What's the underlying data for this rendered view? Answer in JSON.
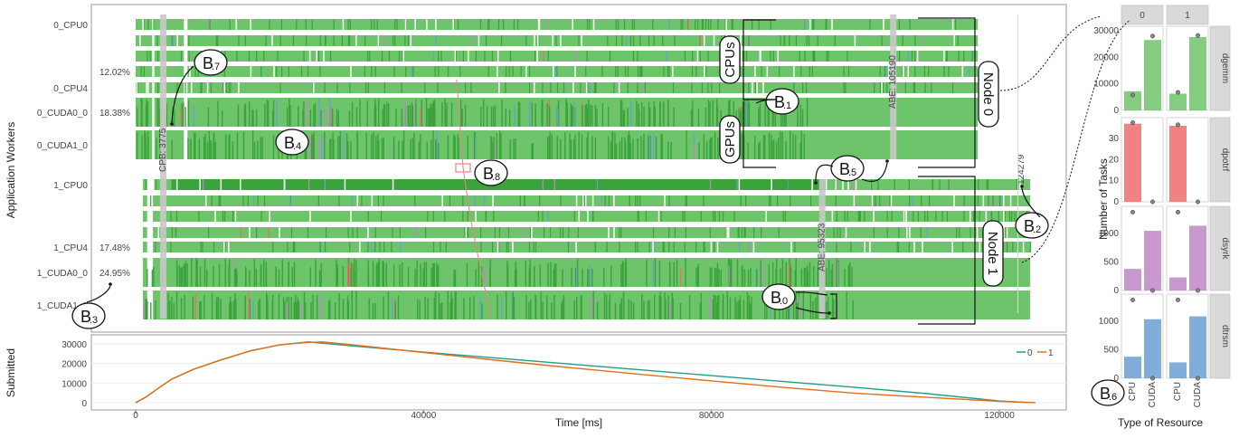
{
  "gantt": {
    "ylabel": "Application Workers",
    "rows": [
      {
        "label": "0_CPU0",
        "node": 0,
        "kind": "cpu",
        "show_label": true
      },
      {
        "label": "",
        "node": 0,
        "kind": "cpu",
        "show_label": false
      },
      {
        "label": "",
        "node": 0,
        "kind": "cpu",
        "show_label": false
      },
      {
        "label": "",
        "node": 0,
        "kind": "cpu",
        "show_label": false
      },
      {
        "label": "0_CPU4",
        "node": 0,
        "kind": "cpu",
        "show_label": true
      },
      {
        "label": "0_CUDA0_0",
        "node": 0,
        "kind": "gpu",
        "show_label": true
      },
      {
        "label": "0_CUDA1_0",
        "node": 0,
        "kind": "gpu",
        "show_label": true
      },
      {
        "label": "1_CPU0",
        "node": 1,
        "kind": "cpu",
        "show_label": true
      },
      {
        "label": "",
        "node": 1,
        "kind": "cpu",
        "show_label": false
      },
      {
        "label": "",
        "node": 1,
        "kind": "cpu",
        "show_label": false
      },
      {
        "label": "",
        "node": 1,
        "kind": "cpu",
        "show_label": false
      },
      {
        "label": "1_CPU4",
        "node": 1,
        "kind": "cpu",
        "show_label": true
      },
      {
        "label": "1_CUDA0_0",
        "node": 1,
        "kind": "gpu",
        "show_label": true
      },
      {
        "label": "1_CUDA1_0",
        "node": 1,
        "kind": "gpu",
        "show_label": true
      }
    ],
    "idle_percentages": [
      {
        "text": "12.02%",
        "row": 3
      },
      {
        "text": "18.38%",
        "row": 5
      },
      {
        "text": "17.48%",
        "row": 11
      },
      {
        "text": "24.95%",
        "row": 12
      }
    ],
    "vertical_labels": [
      {
        "text": "CPB: 3775",
        "time": 3775
      },
      {
        "text": "ABE: 105190",
        "time": 105190
      },
      {
        "text": "ABE: 95323",
        "time": 95323
      },
      {
        "text": "124279",
        "time": 124279
      }
    ],
    "group_labels": [
      "CPUs",
      "GPUs",
      "Node 0",
      "Node 1"
    ],
    "annotations": [
      "B",
      ".7",
      ".1",
      ".4",
      ".8",
      ".5",
      ".2",
      ".3",
      ".0",
      ".6"
    ],
    "colors": {
      "dgemm": "#6ec46a",
      "dgemm_dark": "#3aa33a",
      "dpotrf": "#f06b6b",
      "dsyrk": "#bf86c9",
      "dtrsm": "#6a9fd4",
      "idle_bar": "#c8c8c8",
      "path": "#f08080"
    }
  },
  "submitted": {
    "ylabel": "Submitted",
    "xlabel": "Time [ms]",
    "legend": [
      {
        "name": "0",
        "color": "#1f9e89"
      },
      {
        "name": "1",
        "color": "#e0701a"
      }
    ]
  },
  "facets": {
    "ylabel": "Number of Tasks",
    "xlabel": "Type of Resource",
    "columns": [
      "0",
      "1"
    ],
    "rows": [
      "dgemm",
      "dpotrf",
      "dsyrk",
      "dtrsm"
    ],
    "categories": [
      "CPU",
      "CUDA"
    ]
  },
  "chart_data": [
    {
      "type": "line",
      "title": "",
      "xlabel": "Time [ms]",
      "ylabel": "Submitted",
      "xlim": [
        -5000,
        128000
      ],
      "ylim": [
        0,
        32000
      ],
      "xticks": [
        0,
        40000,
        80000,
        120000
      ],
      "yticks": [
        0,
        10000,
        20000,
        30000
      ],
      "legend_position": "top-right",
      "series": [
        {
          "name": "0",
          "x": [
            0,
            1500,
            3000,
            5000,
            8000,
            12000,
            16000,
            20000,
            24000,
            30000,
            40000,
            50000,
            60000,
            70000,
            80000,
            90000,
            100000,
            110000,
            120000,
            124000
          ],
          "y": [
            0,
            3000,
            7000,
            12000,
            17000,
            22000,
            26500,
            29500,
            31000,
            29000,
            25800,
            22800,
            19800,
            16800,
            13800,
            10800,
            7800,
            4600,
            900,
            100
          ]
        },
        {
          "name": "1",
          "x": [
            0,
            1500,
            3000,
            5000,
            8000,
            12000,
            16000,
            20000,
            24000,
            26000,
            30000,
            40000,
            50000,
            60000,
            70000,
            80000,
            90000,
            100000,
            110000,
            120000,
            125000
          ],
          "y": [
            0,
            3000,
            7000,
            12000,
            17000,
            22000,
            26500,
            29500,
            30800,
            31000,
            29600,
            25600,
            21700,
            18000,
            14500,
            11100,
            7800,
            4800,
            2700,
            700,
            50
          ]
        }
      ]
    },
    {
      "type": "bar",
      "title": "",
      "xlabel": "Type of Resource",
      "ylabel": "Number of Tasks",
      "categories": [
        "CPU",
        "CUDA"
      ],
      "panels": [
        {
          "task": "dgemm",
          "node": "0",
          "values": [
            7200,
            26500
          ],
          "points": [
            5800,
            28000
          ],
          "ylim": [
            0,
            31000
          ],
          "yticks": [
            0,
            10000,
            20000,
            30000
          ]
        },
        {
          "task": "dgemm",
          "node": "1",
          "values": [
            6300,
            27600
          ],
          "points": [
            6800,
            28200
          ],
          "ylim": [
            0,
            31000
          ],
          "yticks": [
            0,
            10000,
            20000,
            30000
          ]
        },
        {
          "task": "dpotrf",
          "node": "0",
          "values": [
            37,
            0
          ],
          "points": [
            37.5,
            0
          ],
          "ylim": [
            0,
            39
          ],
          "yticks": [
            0,
            10,
            20,
            30
          ]
        },
        {
          "task": "dpotrf",
          "node": "1",
          "values": [
            36,
            0
          ],
          "points": [
            36.5,
            0
          ],
          "ylim": [
            0,
            39
          ],
          "yticks": [
            0,
            10,
            20,
            30
          ]
        },
        {
          "task": "dsyrk",
          "node": "0",
          "values": [
            380,
            1050
          ],
          "points": [
            1380,
            0
          ],
          "ylim": [
            0,
            1450
          ],
          "yticks": [
            0,
            500,
            1000
          ]
        },
        {
          "task": "dsyrk",
          "node": "1",
          "values": [
            230,
            1140
          ],
          "points": [
            1380,
            0
          ],
          "ylim": [
            0,
            1450
          ],
          "yticks": [
            0,
            500,
            1000
          ]
        },
        {
          "task": "dtrsm",
          "node": "0",
          "values": [
            380,
            1040
          ],
          "points": [
            1380,
            0
          ],
          "ylim": [
            0,
            1450
          ],
          "yticks": [
            0,
            500,
            1000
          ]
        },
        {
          "task": "dtrsm",
          "node": "1",
          "values": [
            280,
            1090
          ],
          "points": [
            1380,
            0
          ],
          "ylim": [
            0,
            1450
          ],
          "yticks": [
            0,
            500,
            1000
          ]
        }
      ]
    }
  ]
}
